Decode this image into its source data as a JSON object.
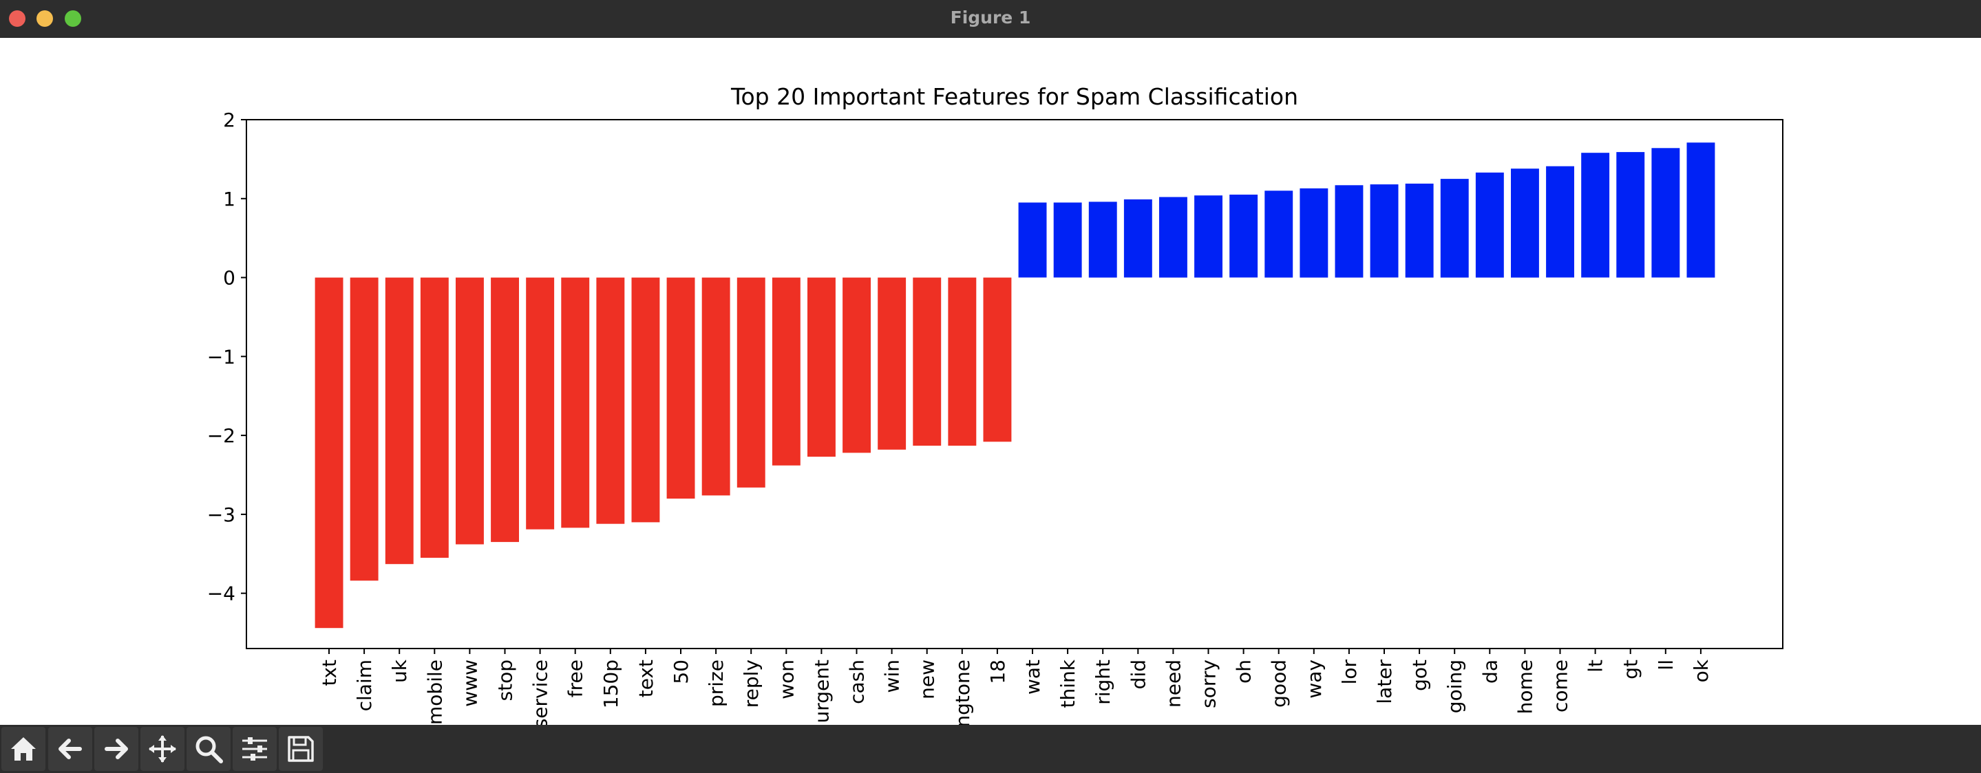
{
  "window": {
    "title": "Figure 1"
  },
  "toolbar": {
    "buttons": [
      {
        "icon": "home-icon"
      },
      {
        "icon": "back-arrow-icon"
      },
      {
        "icon": "forward-arrow-icon"
      },
      {
        "icon": "pan-icon"
      },
      {
        "icon": "zoom-icon"
      },
      {
        "icon": "configure-subplots-icon"
      },
      {
        "icon": "save-icon"
      }
    ]
  },
  "chart_data": {
    "type": "bar",
    "title": "Top 20 Important Features for Spam Classification",
    "xlabel": "",
    "ylabel": "",
    "ylim": [
      -4.7,
      2.0
    ],
    "yticks": [
      2,
      1,
      0,
      -1,
      -2,
      -3,
      -4
    ],
    "ytick_labels": [
      "2",
      "1",
      "0",
      "−1",
      "−2",
      "−3",
      "−4"
    ],
    "colors": {
      "negative": "#ee3024",
      "positive": "#0022f5"
    },
    "categories": [
      "txt",
      "claim",
      "uk",
      "mobile",
      "www",
      "stop",
      "service",
      "free",
      "150p",
      "text",
      "50",
      "prize",
      "reply",
      "won",
      "urgent",
      "cash",
      "win",
      "new",
      "ringtone",
      "18",
      "wat",
      "think",
      "right",
      "did",
      "need",
      "sorry",
      "oh",
      "good",
      "way",
      "lor",
      "later",
      "got",
      "going",
      "da",
      "home",
      "come",
      "lt",
      "gt",
      "ll",
      "ok"
    ],
    "values": [
      -4.44,
      -3.84,
      -3.63,
      -3.55,
      -3.38,
      -3.35,
      -3.19,
      -3.17,
      -3.12,
      -3.1,
      -2.8,
      -2.76,
      -2.66,
      -2.38,
      -2.27,
      -2.22,
      -2.18,
      -2.13,
      -2.13,
      -2.08,
      0.95,
      0.95,
      0.96,
      0.99,
      1.02,
      1.04,
      1.05,
      1.1,
      1.13,
      1.17,
      1.18,
      1.19,
      1.25,
      1.33,
      1.38,
      1.41,
      1.58,
      1.59,
      1.64,
      1.71
    ],
    "grid": false,
    "legend": "none"
  }
}
